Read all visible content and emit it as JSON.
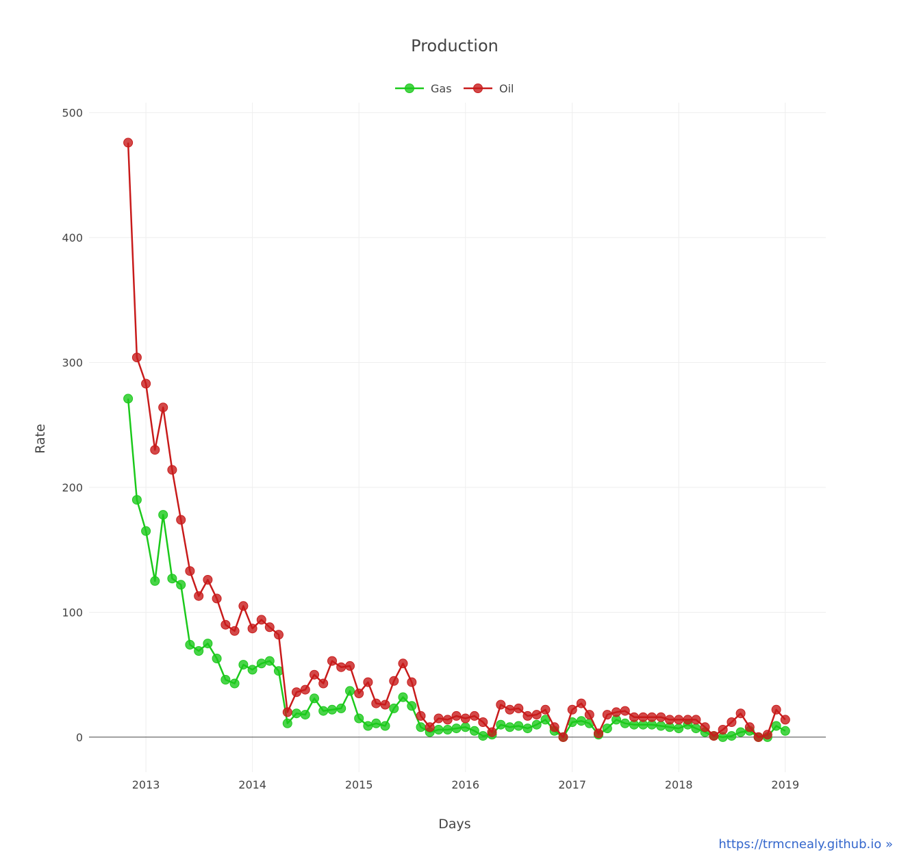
{
  "chart_data": {
    "type": "line",
    "title": "Production",
    "xlabel": "Days",
    "ylabel": "Rate",
    "xlim": [
      "2012-06-20",
      "2019-05-20"
    ],
    "ylim": [
      -28,
      508
    ],
    "x_ticks": [
      "2013",
      "2014",
      "2015",
      "2016",
      "2017",
      "2018",
      "2019"
    ],
    "y_ticks": [
      0,
      100,
      200,
      300,
      400,
      500
    ],
    "grid": true,
    "legend_position": "top-center",
    "x": [
      "2012-11-01",
      "2012-12-01",
      "2013-01-01",
      "2013-02-01",
      "2013-03-01",
      "2013-04-01",
      "2013-05-01",
      "2013-06-01",
      "2013-07-01",
      "2013-08-01",
      "2013-09-01",
      "2013-10-01",
      "2013-11-01",
      "2013-12-01",
      "2014-01-01",
      "2014-02-01",
      "2014-03-01",
      "2014-04-01",
      "2014-05-01",
      "2014-06-01",
      "2014-07-01",
      "2014-08-01",
      "2014-09-01",
      "2014-10-01",
      "2014-11-01",
      "2014-12-01",
      "2015-01-01",
      "2015-02-01",
      "2015-03-01",
      "2015-04-01",
      "2015-05-01",
      "2015-06-01",
      "2015-07-01",
      "2015-08-01",
      "2015-09-01",
      "2015-10-01",
      "2015-11-01",
      "2015-12-01",
      "2016-01-01",
      "2016-02-01",
      "2016-03-01",
      "2016-04-01",
      "2016-05-01",
      "2016-06-01",
      "2016-07-01",
      "2016-08-01",
      "2016-09-01",
      "2016-10-01",
      "2016-11-01",
      "2016-12-01",
      "2017-01-01",
      "2017-02-01",
      "2017-03-01",
      "2017-04-01",
      "2017-05-01",
      "2017-06-01",
      "2017-07-01",
      "2017-08-01",
      "2017-09-01",
      "2017-10-01",
      "2017-11-01",
      "2017-12-01",
      "2018-01-01",
      "2018-02-01",
      "2018-03-01",
      "2018-04-01",
      "2018-05-01",
      "2018-06-01",
      "2018-07-01",
      "2018-08-01",
      "2018-09-01",
      "2018-10-01",
      "2018-11-01",
      "2018-12-01",
      "2019-01-01"
    ],
    "series": [
      {
        "name": "Gas",
        "color": "#1bc91b",
        "values": [
          271,
          190,
          165,
          125,
          178,
          127,
          122,
          74,
          69,
          75,
          63,
          46,
          43,
          58,
          54,
          59,
          61,
          53,
          11,
          19,
          18,
          31,
          21,
          22,
          23,
          37,
          15,
          9,
          11,
          9,
          23,
          32,
          25,
          8,
          4,
          6,
          6,
          7,
          8,
          5,
          1,
          2,
          10,
          8,
          9,
          7,
          10,
          14,
          5,
          0,
          12,
          13,
          11,
          2,
          7,
          14,
          11,
          10,
          10,
          10,
          9,
          8,
          7,
          10,
          7,
          4,
          1,
          0,
          1,
          4,
          5,
          0,
          0,
          9,
          5
        ]
      },
      {
        "name": "Oil",
        "color": "#c81b1b",
        "values": [
          476,
          304,
          283,
          230,
          264,
          214,
          174,
          133,
          113,
          126,
          111,
          90,
          85,
          105,
          87,
          94,
          88,
          82,
          20,
          36,
          38,
          50,
          43,
          61,
          56,
          57,
          35,
          44,
          27,
          26,
          45,
          59,
          44,
          17,
          8,
          15,
          14,
          17,
          15,
          17,
          12,
          4,
          26,
          22,
          23,
          17,
          18,
          22,
          8,
          0,
          22,
          27,
          18,
          3,
          18,
          20,
          21,
          16,
          16,
          16,
          16,
          14,
          14,
          14,
          14,
          8,
          1,
          6,
          12,
          19,
          8,
          0,
          2,
          22,
          14
        ]
      }
    ]
  },
  "credit": "https://trmcnealy.github.io »"
}
